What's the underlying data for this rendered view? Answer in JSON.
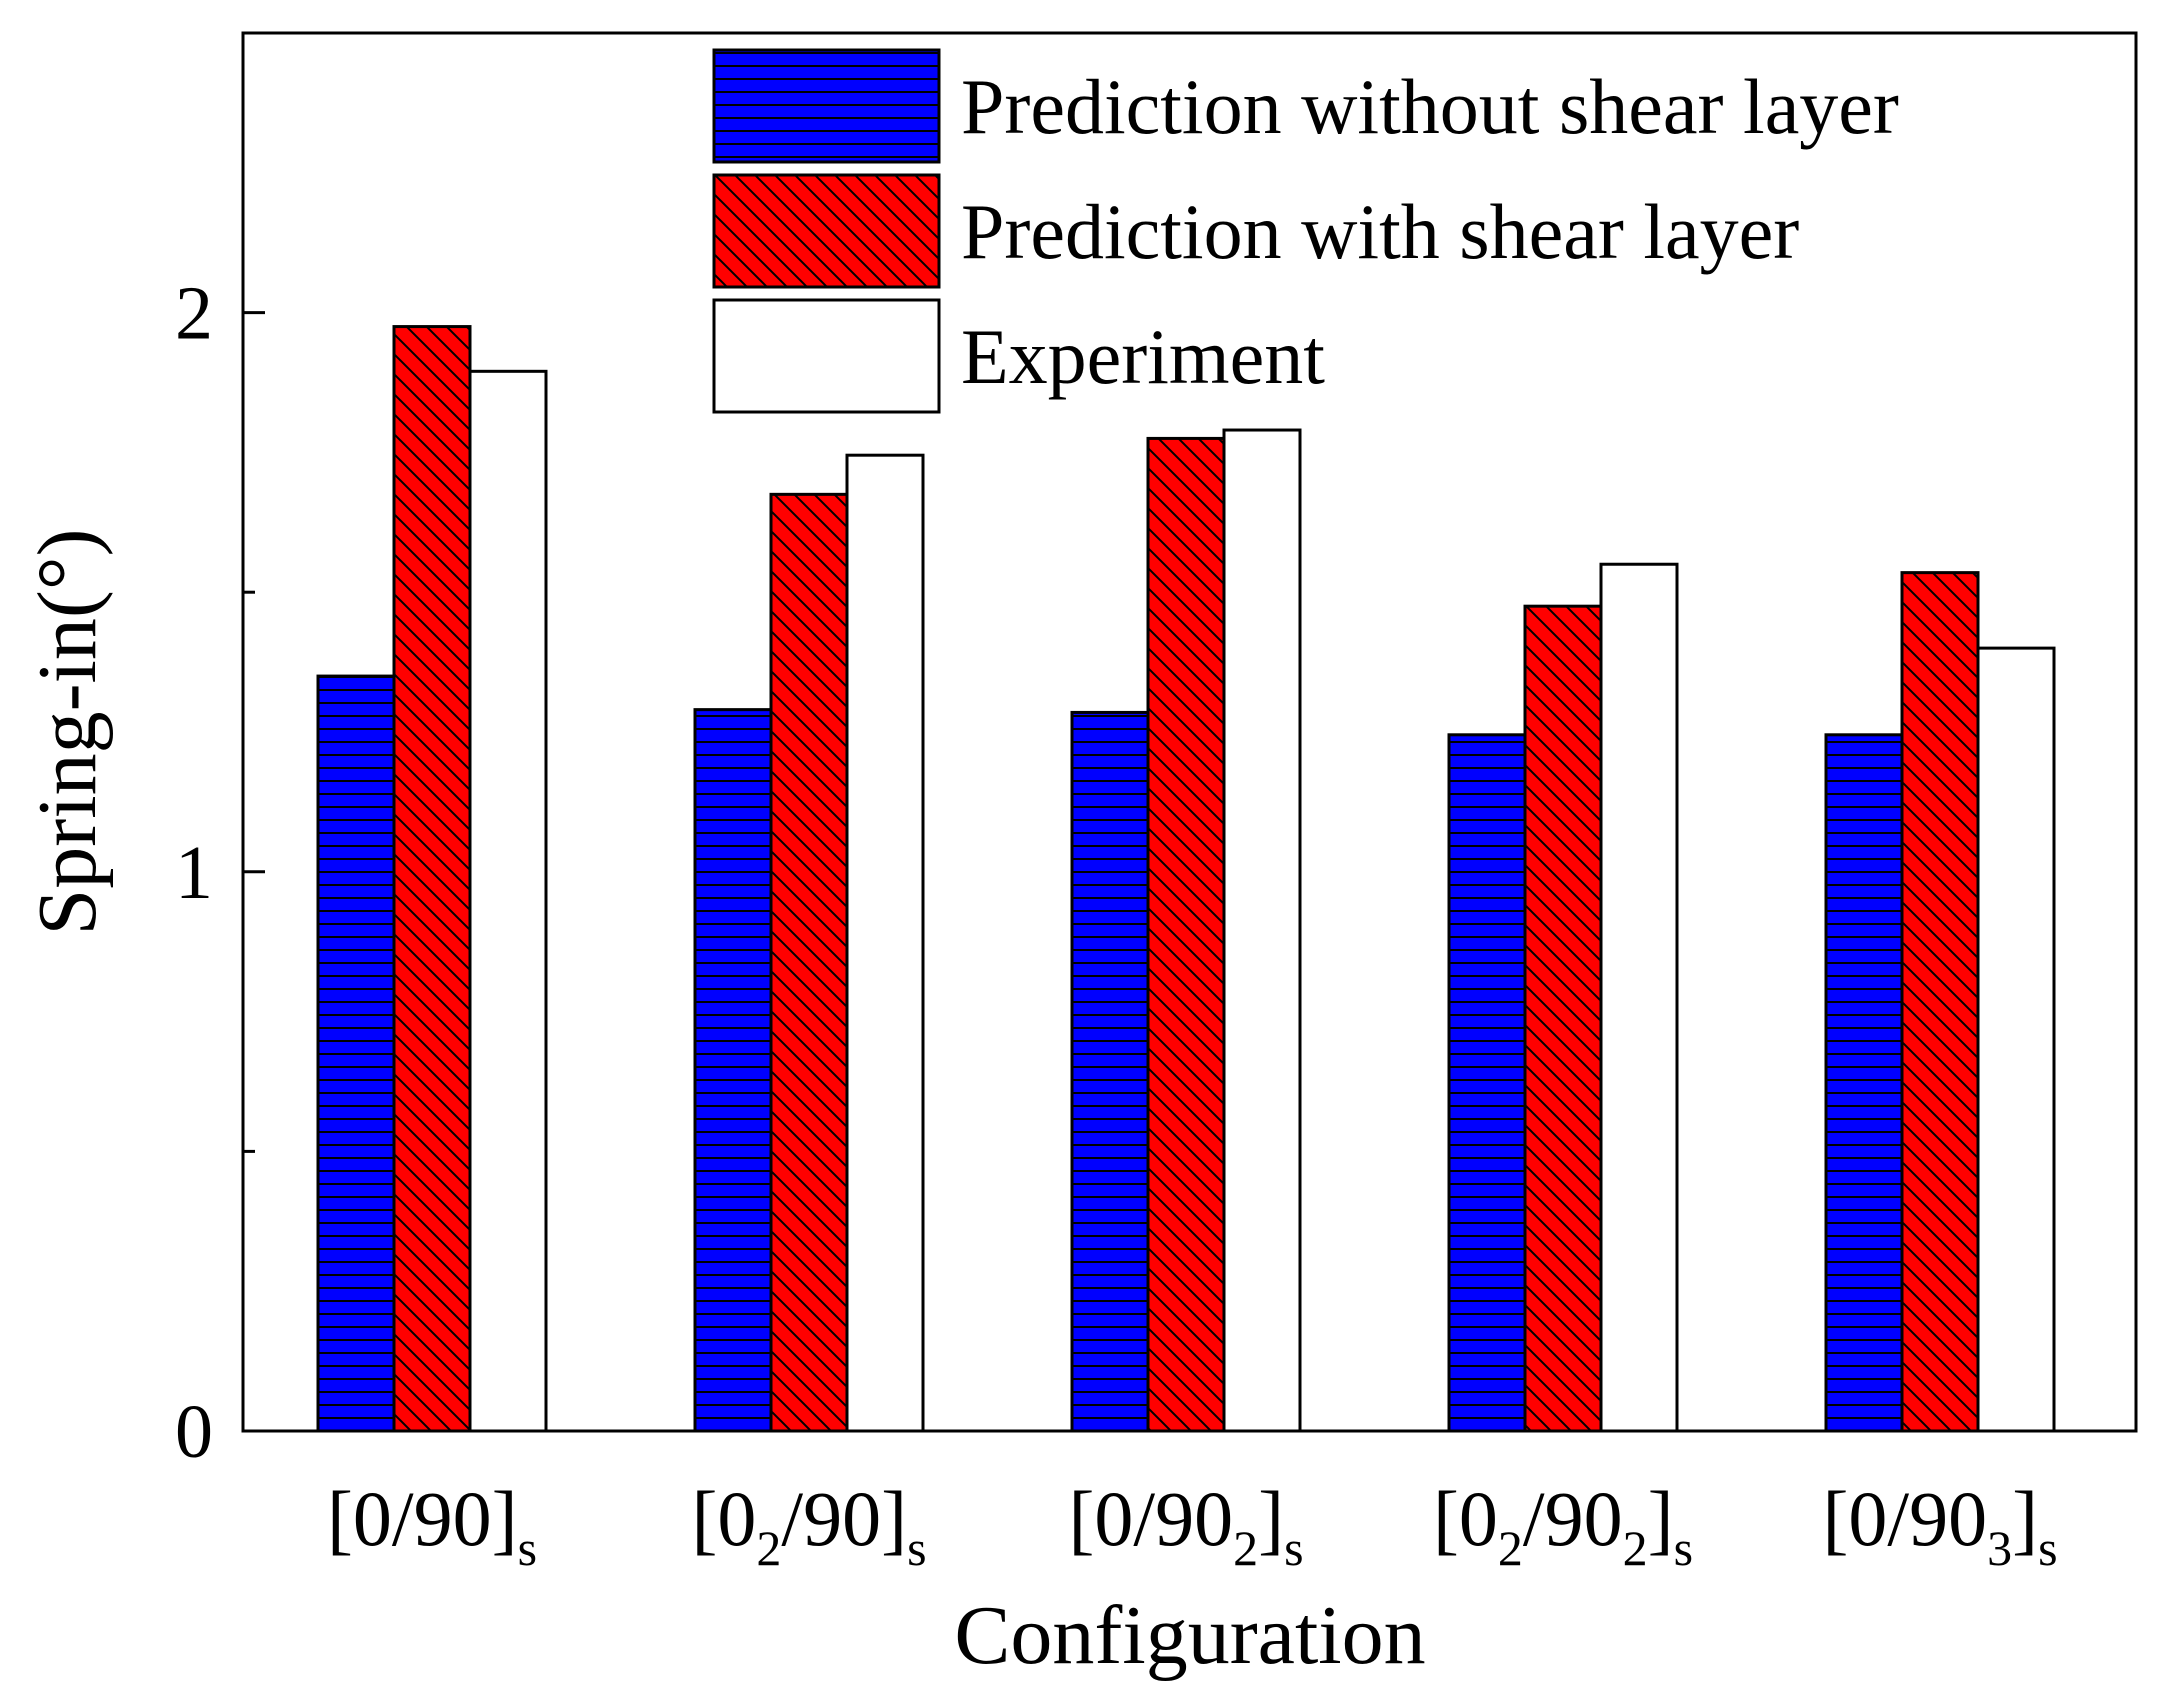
{
  "chart_data": {
    "type": "bar",
    "title": "",
    "xlabel": "Configuration",
    "ylabel": "Spring-in(°)",
    "ylim": [
      0,
      2.5
    ],
    "yticks": [
      0,
      1,
      2
    ],
    "minor_ytick_step": 0.5,
    "grid": false,
    "legend_position": "top-right",
    "categories": [
      {
        "label": "[0/90]s",
        "parts": [
          [
            "[0/90]",
            "normal"
          ],
          [
            "s",
            "sub"
          ]
        ]
      },
      {
        "label": "[02/90]s",
        "parts": [
          [
            "[0",
            "normal"
          ],
          [
            "2",
            "sub"
          ],
          [
            "/90]",
            "normal"
          ],
          [
            "s",
            "sub"
          ]
        ]
      },
      {
        "label": "[0/902]s",
        "parts": [
          [
            "[0/90",
            "normal"
          ],
          [
            "2",
            "sub"
          ],
          [
            "]",
            "normal"
          ],
          [
            "s",
            "sub"
          ]
        ]
      },
      {
        "label": "[02/902]s",
        "parts": [
          [
            "[0",
            "normal"
          ],
          [
            "2",
            "sub"
          ],
          [
            "/90",
            "normal"
          ],
          [
            "2",
            "sub"
          ],
          [
            "]",
            "normal"
          ],
          [
            "s",
            "sub"
          ]
        ]
      },
      {
        "label": "[0/903]s",
        "parts": [
          [
            "[0/90",
            "normal"
          ],
          [
            "3",
            "sub"
          ],
          [
            "]",
            "normal"
          ],
          [
            "s",
            "sub"
          ]
        ]
      }
    ],
    "series": [
      {
        "name": "Prediction without shear layer",
        "color": "#0000ff",
        "pattern": "horizontal-lines",
        "values": [
          1.35,
          1.29,
          1.285,
          1.245,
          1.245
        ]
      },
      {
        "name": "Prediction with shear layer",
        "color": "#ff0000",
        "pattern": "diagonal-lines",
        "values": [
          1.975,
          1.675,
          1.775,
          1.475,
          1.535
        ]
      },
      {
        "name": "Experiment",
        "color": "#ffffff",
        "pattern": "none",
        "values": [
          1.895,
          1.745,
          1.79,
          1.55,
          1.4
        ]
      }
    ]
  }
}
